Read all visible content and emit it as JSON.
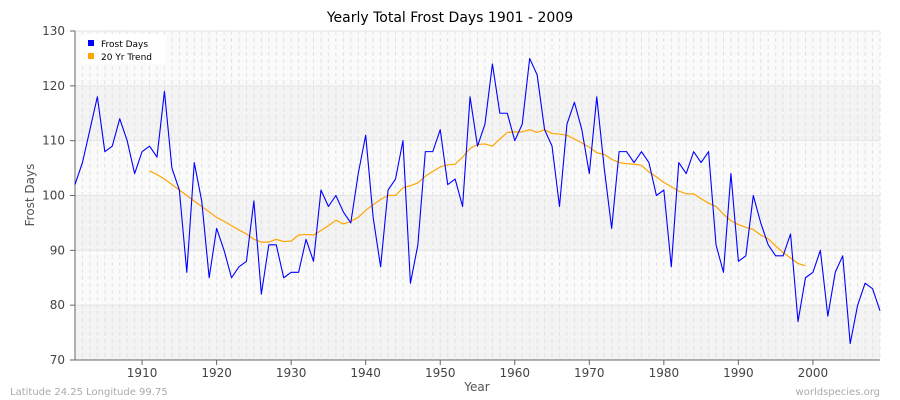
{
  "chart_data": {
    "type": "line",
    "title": "Yearly Total Frost Days 1901 - 2009",
    "xlabel": "Year",
    "ylabel": "Frost Days",
    "xlim": [
      1901,
      2009
    ],
    "ylim": [
      70,
      130
    ],
    "xticks": [
      1910,
      1920,
      1930,
      1940,
      1950,
      1960,
      1970,
      1980,
      1990,
      2000
    ],
    "yticks": [
      70,
      80,
      90,
      100,
      110,
      120,
      130
    ],
    "grid": true,
    "legend": "top-left",
    "series": [
      {
        "name": "Frost Days",
        "color": "#0000ff",
        "x_start": 1901,
        "values": [
          102,
          106,
          112,
          118,
          108,
          109,
          114,
          110,
          104,
          108,
          109,
          107,
          119,
          105,
          101,
          86,
          106,
          99,
          85,
          94,
          90,
          85,
          87,
          88,
          99,
          82,
          91,
          91,
          85,
          86,
          86,
          92,
          88,
          101,
          98,
          100,
          97,
          95,
          104,
          111,
          96,
          87,
          101,
          103,
          110,
          84,
          91,
          108,
          108,
          112,
          102,
          103,
          98,
          118,
          109,
          113,
          124,
          115,
          115,
          110,
          113,
          125,
          122,
          112,
          109,
          98,
          113,
          117,
          112,
          104,
          118,
          105,
          94,
          108,
          108,
          106,
          108,
          106,
          100,
          101,
          87,
          106,
          104,
          108,
          106,
          108,
          91,
          86,
          104,
          88,
          89,
          100,
          95,
          91,
          89,
          89,
          93,
          77,
          85,
          86,
          90,
          78,
          86,
          89,
          73,
          80,
          84,
          83,
          79
        ]
      },
      {
        "name": "20 Yr Trend",
        "color": "#ffa500",
        "x_start": 1911,
        "values": [
          104.5,
          103.8,
          103,
          102,
          101,
          100,
          99,
          98,
          97,
          96,
          95.3,
          94.5,
          93.7,
          93,
          92,
          91.5,
          91.5,
          92,
          91.6,
          91.7,
          92.8,
          92.9,
          92.8,
          93.6,
          94.5,
          95.5,
          94.8,
          95.3,
          96,
          97.3,
          98.3,
          99.3,
          100,
          100,
          101.4,
          101.8,
          102.3,
          103.5,
          104.4,
          105.2,
          105.6,
          105.7,
          107,
          108.6,
          109.3,
          109.4,
          109,
          110.3,
          111.5,
          111.6,
          111.6,
          112,
          111.5,
          112,
          111.3,
          111.2,
          111,
          110.3,
          109.6,
          108.8,
          107.8,
          107.5,
          106.6,
          106,
          105.8,
          105.7,
          105.5,
          104.3,
          103.4,
          102.4,
          101.6,
          100.8,
          100.3,
          100.3,
          99.4,
          98.6,
          98,
          96.6,
          95.4,
          94.7,
          94.2,
          93.8,
          92.8,
          92.1,
          90.8,
          89.6,
          88.6,
          87.6,
          87.2
        ]
      }
    ]
  },
  "footer": {
    "left": "Latitude 24.25 Longitude 99.75",
    "right": "worldspecies.org"
  }
}
